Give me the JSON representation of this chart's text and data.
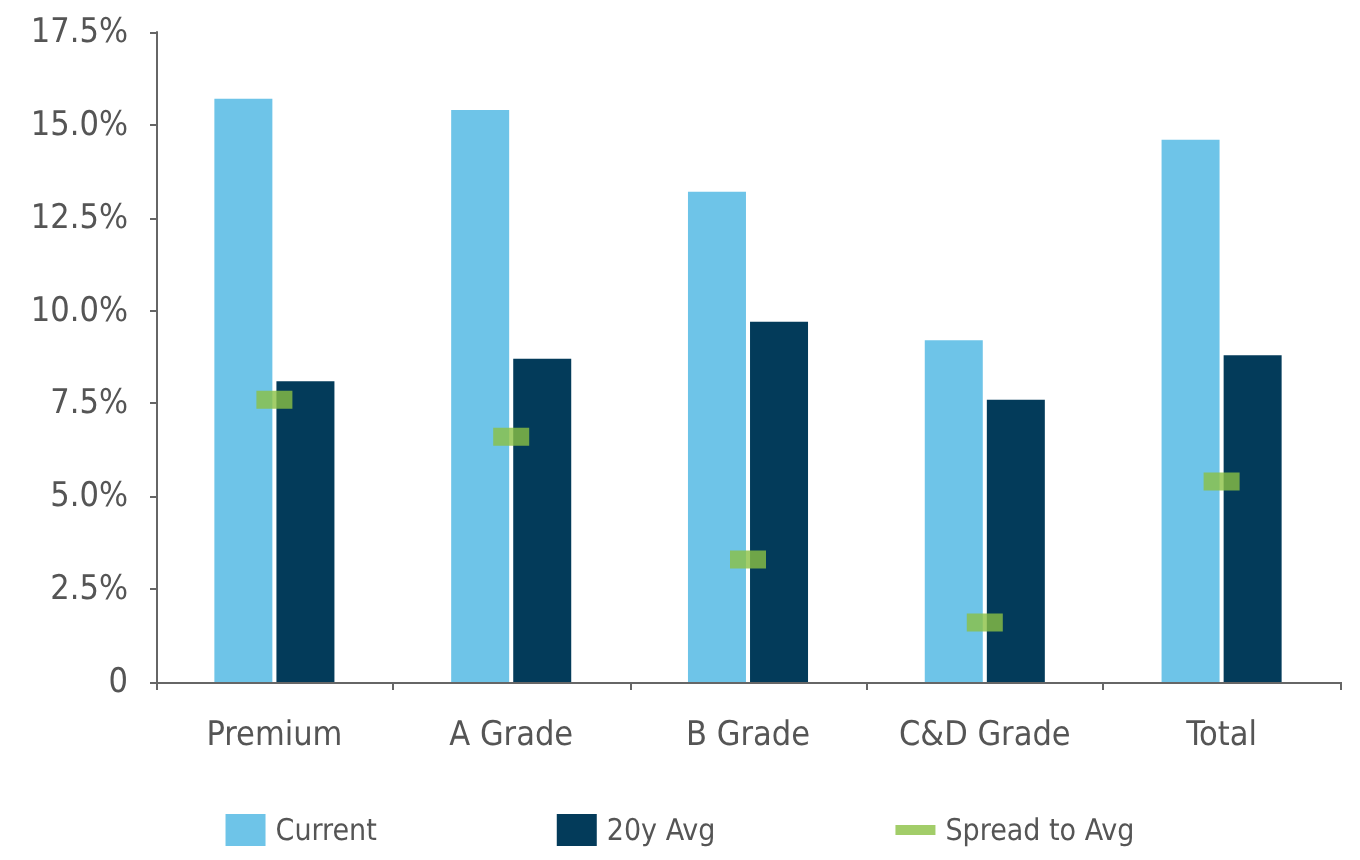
{
  "chart_data": {
    "type": "bar",
    "categories": [
      "Premium",
      "A Grade",
      "B Grade",
      "C&D Grade",
      "Total"
    ],
    "series": [
      {
        "name": "Current",
        "color": "#6ec4e8",
        "values": [
          15.7,
          15.4,
          13.2,
          9.2,
          14.6
        ]
      },
      {
        "name": "20y Avg",
        "color": "#033b5a",
        "values": [
          8.1,
          8.7,
          9.7,
          7.6,
          8.8
        ]
      },
      {
        "name": "Spread to Avg",
        "type": "scatter",
        "marker": "square",
        "color": "#8bc043",
        "values": [
          7.6,
          6.6,
          3.3,
          1.6,
          5.4
        ]
      }
    ],
    "ylim": [
      0,
      17.5
    ],
    "yticks": [
      0,
      {
        "value": 2.5,
        "label": "2.5%"
      },
      {
        "value": 5,
        "label": "5.0%"
      },
      {
        "value": 7.5,
        "label": "7.5%"
      },
      {
        "value": 10,
        "label": "10.0%"
      },
      {
        "value": 12.5,
        "label": "12.5%"
      },
      {
        "value": 15,
        "label": "15.0%"
      },
      {
        "value": 17.5,
        "label": "17.5%"
      }
    ],
    "grid": false,
    "legend": "bottom"
  }
}
